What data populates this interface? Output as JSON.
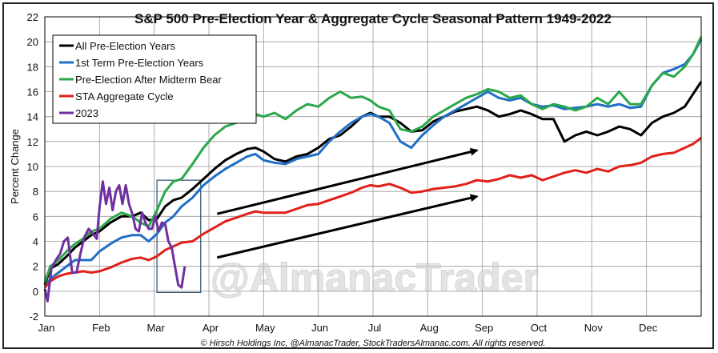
{
  "chart_data": {
    "type": "line",
    "title": "S&P 500 Pre-Election Year & Aggregate Cycle Seasonal Pattern 1949-2022",
    "xlabel": "",
    "ylabel": "Percent Change",
    "ylim": [
      -2,
      22
    ],
    "yticks": [
      -2,
      0,
      2,
      4,
      6,
      8,
      10,
      12,
      14,
      16,
      18,
      20,
      22
    ],
    "months": [
      "Jan",
      "Feb",
      "Mar",
      "Apr",
      "May",
      "Jun",
      "Jul",
      "Aug",
      "Sep",
      "Oct",
      "Nov",
      "Dec"
    ],
    "grid": true,
    "legend_position": "top-left",
    "watermark": "@AlmanacTrader",
    "copyright": "© Hirsch Holdings Inc, @AlmanacTrader, StockTradersAlmanac.com. All rights reserved.",
    "series": [
      {
        "name": "All Pre-Election Years",
        "color": "#000000",
        "x": [
          0,
          0.1,
          0.25,
          0.4,
          0.55,
          0.7,
          0.85,
          1.0,
          1.2,
          1.4,
          1.6,
          1.75,
          1.9,
          2.05,
          2.2,
          2.35,
          2.5,
          2.7,
          2.9,
          3.1,
          3.3,
          3.5,
          3.7,
          3.85,
          4.0,
          4.2,
          4.4,
          4.6,
          4.8,
          5.0,
          5.2,
          5.4,
          5.6,
          5.8,
          5.95,
          6.1,
          6.3,
          6.5,
          6.7,
          6.9,
          7.1,
          7.3,
          7.5,
          7.7,
          7.9,
          8.1,
          8.3,
          8.5,
          8.7,
          8.9,
          9.1,
          9.3,
          9.5,
          9.7,
          9.9,
          10.1,
          10.3,
          10.5,
          10.7,
          10.9,
          11.1,
          11.3,
          11.5,
          11.7,
          11.85,
          12.0
        ],
        "y": [
          0.5,
          1.8,
          2.2,
          2.8,
          3.5,
          4.0,
          4.5,
          4.8,
          5.5,
          6.0,
          6.0,
          6.3,
          5.7,
          5.8,
          6.8,
          7.3,
          7.5,
          8.2,
          9.0,
          9.8,
          10.5,
          11.0,
          11.4,
          11.5,
          11.2,
          10.6,
          10.4,
          10.8,
          11.0,
          11.5,
          12.2,
          12.5,
          13.2,
          14.0,
          14.3,
          14.0,
          14.0,
          13.5,
          12.8,
          12.9,
          13.6,
          14.0,
          14.4,
          14.6,
          14.8,
          14.5,
          14.0,
          14.2,
          14.5,
          14.2,
          13.8,
          13.8,
          12.0,
          12.5,
          12.8,
          12.5,
          12.8,
          13.2,
          13.0,
          12.5,
          13.5,
          14.0,
          14.3,
          14.8,
          15.8,
          16.8
        ]
      },
      {
        "name": "1st Term Pre-Election Years",
        "color": "#1f6fc5",
        "x": [
          0,
          0.1,
          0.25,
          0.4,
          0.55,
          0.7,
          0.85,
          1.0,
          1.2,
          1.4,
          1.6,
          1.75,
          1.9,
          2.05,
          2.2,
          2.35,
          2.5,
          2.7,
          2.9,
          3.1,
          3.3,
          3.5,
          3.7,
          3.85,
          4.0,
          4.2,
          4.4,
          4.6,
          4.8,
          5.0,
          5.2,
          5.4,
          5.6,
          5.8,
          5.95,
          6.1,
          6.3,
          6.5,
          6.7,
          6.9,
          7.1,
          7.3,
          7.5,
          7.7,
          7.9,
          8.1,
          8.3,
          8.5,
          8.7,
          8.9,
          9.1,
          9.3,
          9.5,
          9.7,
          9.9,
          10.1,
          10.3,
          10.5,
          10.7,
          10.9,
          11.1,
          11.3,
          11.5,
          11.7,
          11.85,
          12.0
        ],
        "y": [
          0.3,
          1.0,
          1.5,
          2.0,
          2.5,
          2.5,
          2.5,
          3.2,
          3.8,
          4.3,
          4.5,
          4.5,
          4.0,
          4.6,
          5.5,
          6.0,
          6.8,
          7.5,
          8.5,
          9.2,
          9.8,
          10.3,
          10.8,
          11.0,
          10.5,
          10.3,
          10.2,
          10.6,
          10.8,
          11.0,
          12.0,
          12.8,
          13.5,
          14.0,
          14.2,
          14.0,
          13.5,
          12.0,
          11.5,
          12.5,
          13.3,
          14.0,
          14.5,
          15.0,
          15.5,
          16.0,
          15.5,
          15.3,
          15.5,
          15.0,
          14.8,
          14.9,
          14.6,
          14.7,
          14.8,
          15.0,
          14.8,
          15.0,
          14.7,
          14.8,
          16.5,
          17.5,
          17.8,
          18.2,
          19.0,
          20.2
        ]
      },
      {
        "name": "Pre-Election After Midterm Bear",
        "color": "#2aa84a",
        "x": [
          0,
          0.1,
          0.25,
          0.4,
          0.55,
          0.7,
          0.85,
          1.0,
          1.2,
          1.4,
          1.6,
          1.75,
          1.9,
          2.05,
          2.2,
          2.35,
          2.5,
          2.7,
          2.9,
          3.1,
          3.3,
          3.5,
          3.7,
          3.85,
          4.0,
          4.2,
          4.4,
          4.6,
          4.8,
          5.0,
          5.2,
          5.4,
          5.6,
          5.8,
          5.95,
          6.1,
          6.3,
          6.5,
          6.7,
          6.9,
          7.1,
          7.3,
          7.5,
          7.7,
          7.9,
          8.1,
          8.3,
          8.5,
          8.7,
          8.9,
          9.1,
          9.3,
          9.5,
          9.7,
          9.9,
          10.1,
          10.3,
          10.5,
          10.7,
          10.9,
          11.1,
          11.3,
          11.5,
          11.7,
          11.85,
          12.0
        ],
        "y": [
          0.7,
          2.0,
          2.5,
          3.2,
          3.8,
          4.2,
          4.8,
          5.0,
          5.8,
          6.3,
          6.0,
          5.5,
          5.2,
          6.5,
          8.0,
          8.8,
          9.0,
          10.2,
          11.5,
          12.5,
          13.2,
          13.5,
          13.8,
          14.2,
          14.0,
          14.3,
          13.8,
          14.5,
          15.0,
          14.8,
          15.5,
          16.0,
          15.5,
          15.6,
          15.3,
          14.8,
          14.5,
          13.0,
          12.8,
          13.2,
          14.0,
          14.5,
          15.0,
          15.5,
          15.8,
          16.2,
          16.0,
          15.5,
          15.7,
          15.0,
          14.6,
          15.0,
          14.8,
          14.5,
          14.8,
          15.5,
          15.0,
          16.0,
          15.0,
          15.0,
          16.5,
          17.5,
          17.2,
          18.0,
          19.0,
          20.4
        ]
      },
      {
        "name": "STA Aggregate Cycle",
        "color": "#e0201b",
        "x": [
          0,
          0.1,
          0.25,
          0.4,
          0.55,
          0.7,
          0.85,
          1.0,
          1.2,
          1.4,
          1.6,
          1.75,
          1.9,
          2.05,
          2.2,
          2.35,
          2.5,
          2.7,
          2.9,
          3.1,
          3.3,
          3.5,
          3.7,
          3.85,
          4.0,
          4.2,
          4.4,
          4.6,
          4.8,
          5.0,
          5.2,
          5.4,
          5.6,
          5.8,
          5.95,
          6.1,
          6.3,
          6.5,
          6.7,
          6.9,
          7.1,
          7.3,
          7.5,
          7.7,
          7.9,
          8.1,
          8.3,
          8.5,
          8.7,
          8.9,
          9.1,
          9.3,
          9.5,
          9.7,
          9.9,
          10.1,
          10.3,
          10.5,
          10.7,
          10.9,
          11.1,
          11.3,
          11.5,
          11.7,
          11.85,
          12.0
        ],
        "y": [
          0.3,
          0.8,
          1.2,
          1.4,
          1.5,
          1.6,
          1.5,
          1.6,
          1.9,
          2.3,
          2.6,
          2.7,
          2.5,
          2.8,
          3.3,
          3.6,
          3.9,
          4.0,
          4.6,
          5.1,
          5.6,
          5.9,
          6.2,
          6.4,
          6.3,
          6.3,
          6.3,
          6.6,
          6.9,
          7.0,
          7.3,
          7.6,
          7.9,
          8.3,
          8.5,
          8.4,
          8.6,
          8.3,
          7.9,
          8.0,
          8.2,
          8.3,
          8.4,
          8.6,
          8.9,
          8.8,
          9.0,
          9.3,
          9.1,
          9.3,
          8.9,
          9.2,
          9.5,
          9.7,
          9.5,
          9.8,
          9.6,
          10.0,
          10.1,
          10.3,
          10.8,
          11.0,
          11.1,
          11.5,
          11.8,
          12.3
        ]
      },
      {
        "name": "2023",
        "color": "#7030a0",
        "x": [
          0.0,
          0.05,
          0.12,
          0.2,
          0.28,
          0.35,
          0.42,
          0.5,
          0.58,
          0.65,
          0.72,
          0.8,
          0.88,
          0.95,
          1.0,
          1.06,
          1.12,
          1.18,
          1.24,
          1.3,
          1.36,
          1.42,
          1.48,
          1.54,
          1.6,
          1.66,
          1.72,
          1.78,
          1.84,
          1.9,
          1.96,
          2.02,
          2.08,
          2.14,
          2.2,
          2.26,
          2.32,
          2.38,
          2.44,
          2.5,
          2.56
        ],
        "y": [
          0.2,
          -0.8,
          1.8,
          2.5,
          3.0,
          4.0,
          4.3,
          1.5,
          1.5,
          3.0,
          4.3,
          5.0,
          4.6,
          4.2,
          6.7,
          8.8,
          7.0,
          8.3,
          6.5,
          8.0,
          8.5,
          7.0,
          8.5,
          7.0,
          6.2,
          5.0,
          4.8,
          6.3,
          5.5,
          5.0,
          5.0,
          6.0,
          4.8,
          5.5,
          5.4,
          4.0,
          3.5,
          2.0,
          0.5,
          0.3,
          2.0
        ]
      }
    ],
    "arrows": [
      {
        "from": [
          3.15,
          6.2
        ],
        "to": [
          7.9,
          11.3
        ]
      },
      {
        "from": [
          3.15,
          2.7
        ],
        "to": [
          7.9,
          7.6
        ]
      }
    ],
    "highlight_box": {
      "x0": 2.05,
      "x1": 2.85,
      "y0": -0.1,
      "y1": 8.9
    }
  }
}
